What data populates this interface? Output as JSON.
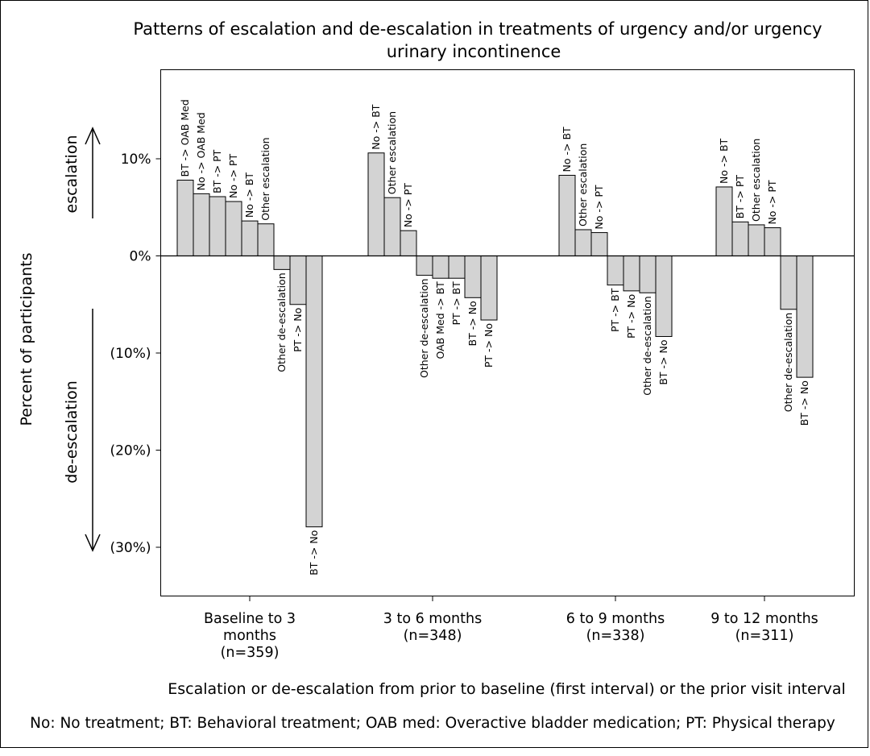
{
  "chart_data": {
    "type": "bar",
    "title_lines": [
      "Patterns of escalation and de-escalation in treatments of urgency and/or urgency",
      "urinary incontinence"
    ],
    "ylabel": "Percent of participants",
    "xlabel": "Escalation or de-escalation from prior to baseline (first interval) or the prior visit interval",
    "footnote": "No: No treatment; BT: Behavioral treatment; OAB med: Overactive bladder medication; PT: Physical therapy",
    "direction_labels": {
      "up": "escalation",
      "down": "de-escalation"
    },
    "ylim": [
      -35,
      19
    ],
    "y_ticks": [
      {
        "value": 10,
        "label": "10%"
      },
      {
        "value": 0,
        "label": "0%"
      },
      {
        "value": -10,
        "label": "(10%)"
      },
      {
        "value": -20,
        "label": "(20%)"
      },
      {
        "value": -30,
        "label": "(30%)"
      }
    ],
    "groups": [
      {
        "label_lines": [
          "Baseline to 3",
          "months",
          "(n=359)"
        ],
        "bars": [
          {
            "label": "BT -> OAB Med",
            "value": 7.8
          },
          {
            "label": "No -> OAB Med",
            "value": 6.4
          },
          {
            "label": "BT -> PT",
            "value": 6.1
          },
          {
            "label": "No -> PT",
            "value": 5.6
          },
          {
            "label": "No -> BT",
            "value": 3.6
          },
          {
            "label": "Other escalation",
            "value": 3.3
          },
          {
            "label": "Other de-escalation",
            "value": -1.4
          },
          {
            "label": "PT -> No",
            "value": -5.0
          },
          {
            "label": "BT -> No",
            "value": -27.9
          }
        ]
      },
      {
        "label_lines": [
          "3 to 6 months",
          "(n=348)"
        ],
        "bars": [
          {
            "label": "No -> BT",
            "value": 10.6
          },
          {
            "label": "Other escalation",
            "value": 6.0
          },
          {
            "label": "No -> PT",
            "value": 2.6
          },
          {
            "label": "Other de-escalation",
            "value": -2.0
          },
          {
            "label": "OAB Med -> BT",
            "value": -2.3
          },
          {
            "label": "PT -> BT",
            "value": -2.3
          },
          {
            "label": "BT -> No",
            "value": -4.3
          },
          {
            "label": "PT -> No",
            "value": -6.6
          }
        ]
      },
      {
        "label_lines": [
          "6 to 9 months",
          "(n=338)"
        ],
        "bars": [
          {
            "label": "No -> BT",
            "value": 8.3
          },
          {
            "label": "Other escalation",
            "value": 2.7
          },
          {
            "label": "No -> PT",
            "value": 2.4
          },
          {
            "label": "PT -> BT",
            "value": -3.0
          },
          {
            "label": "PT -> No",
            "value": -3.6
          },
          {
            "label": "Other de-escalation",
            "value": -3.8
          },
          {
            "label": "BT -> No",
            "value": -8.3
          }
        ]
      },
      {
        "label_lines": [
          "9 to 12 months",
          "(n=311)"
        ],
        "bars": [
          {
            "label": "No -> BT",
            "value": 7.1
          },
          {
            "label": "BT -> PT",
            "value": 3.5
          },
          {
            "label": "Other escalation",
            "value": 3.2
          },
          {
            "label": "No -> PT",
            "value": 2.9
          },
          {
            "label": "Other de-escalation",
            "value": -5.5
          },
          {
            "label": "BT -> No",
            "value": -12.5
          }
        ]
      }
    ],
    "colors": {
      "bar_fill": "#d3d3d3",
      "bar_stroke": "#000000"
    },
    "grid": false,
    "legend": "none"
  }
}
